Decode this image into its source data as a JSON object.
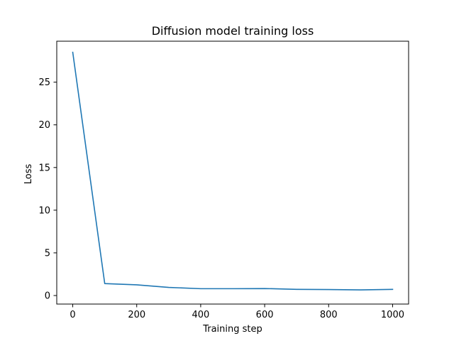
{
  "chart_data": {
    "type": "line",
    "title": "Diffusion model training loss",
    "xlabel": "Training step",
    "ylabel": "Loss",
    "xlim": [
      -50,
      1050
    ],
    "ylim": [
      -1.0,
      29.8
    ],
    "xticks": [
      0,
      200,
      400,
      600,
      800,
      1000
    ],
    "yticks": [
      0,
      5,
      10,
      15,
      20,
      25
    ],
    "grid": false,
    "series": [
      {
        "color": "#1f77b4",
        "x": [
          0,
          100,
          200,
          300,
          400,
          500,
          600,
          700,
          800,
          900,
          1000
        ],
        "y": [
          28.5,
          1.4,
          1.25,
          0.95,
          0.8,
          0.8,
          0.82,
          0.72,
          0.7,
          0.66,
          0.72
        ]
      }
    ]
  }
}
